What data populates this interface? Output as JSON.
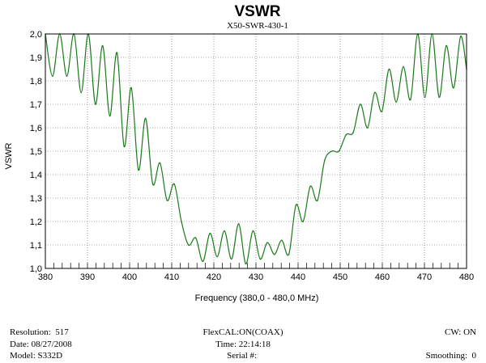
{
  "chart_data": {
    "type": "line",
    "title": "VSWR",
    "subtitle": "X50-SWR-430-1",
    "xlabel": "Frequency (380,0 - 480,0 MHz)",
    "ylabel": "VSWR",
    "xlim": [
      380,
      480
    ],
    "ylim": [
      1.0,
      2.0
    ],
    "x_ticks": [
      380,
      390,
      400,
      410,
      420,
      430,
      440,
      450,
      460,
      470,
      480
    ],
    "x_tick_labels": [
      "380",
      "390",
      "400",
      "410",
      "420",
      "430",
      "440",
      "450",
      "460",
      "470",
      "480"
    ],
    "y_ticks": [
      1.0,
      1.1,
      1.2,
      1.3,
      1.4,
      1.5,
      1.6,
      1.7,
      1.8,
      1.9,
      2.0
    ],
    "y_tick_labels": [
      "1,0",
      "1,1",
      "1,2",
      "1,3",
      "1,4",
      "1,5",
      "1,6",
      "1,7",
      "1,8",
      "1,9",
      "2,0"
    ],
    "grid": true,
    "line_color": "#1a7a1a",
    "series": [
      {
        "name": "VSWR",
        "x": [
          380,
          381.7,
          383.4,
          385.1,
          386.8,
          388.5,
          390.2,
          391.9,
          393.6,
          395.3,
          397.0,
          398.7,
          400.4,
          402.1,
          403.8,
          405.5,
          407.2,
          408.9,
          410.6,
          412.3,
          414.0,
          415.7,
          417.4,
          419.1,
          420.8,
          422.5,
          424.2,
          425.9,
          427.6,
          429.3,
          431.0,
          432.7,
          434.4,
          436.1,
          437.8,
          439.5,
          441.2,
          442.9,
          444.6,
          446.3,
          448.0,
          449.7,
          451.4,
          453.1,
          454.8,
          456.5,
          458.2,
          459.9,
          461.6,
          463.3,
          465.0,
          466.7,
          468.4,
          470.1,
          471.8,
          473.5,
          475.2,
          476.9,
          478.6,
          480
        ],
        "values": [
          2.0,
          1.82,
          2.0,
          1.82,
          2.0,
          1.75,
          2.0,
          1.7,
          1.95,
          1.65,
          1.92,
          1.52,
          1.77,
          1.42,
          1.64,
          1.36,
          1.45,
          1.29,
          1.36,
          1.2,
          1.1,
          1.13,
          1.03,
          1.15,
          1.05,
          1.16,
          1.04,
          1.19,
          1.02,
          1.16,
          1.04,
          1.11,
          1.06,
          1.12,
          1.06,
          1.27,
          1.2,
          1.35,
          1.29,
          1.46,
          1.5,
          1.5,
          1.57,
          1.58,
          1.7,
          1.6,
          1.75,
          1.67,
          1.85,
          1.71,
          1.86,
          1.72,
          2.0,
          1.73,
          2.0,
          1.73,
          1.95,
          1.77,
          1.99,
          1.85
        ]
      }
    ]
  },
  "footer": {
    "resolution_label": "Resolution:",
    "resolution_value": "517",
    "date_label": "Date:",
    "date_value": "08/27/2008",
    "model_label": "Model:",
    "model_value": "S332D",
    "flexcal_label": "FlexCAL:",
    "flexcal_value": "ON(COAX)",
    "time_label": "Time:",
    "time_value": "22:14:18",
    "serial_label": "Serial #:",
    "serial_value": "",
    "cw_label": "CW:",
    "cw_value": "ON",
    "smoothing_label": "Smoothing:",
    "smoothing_value": "0"
  }
}
